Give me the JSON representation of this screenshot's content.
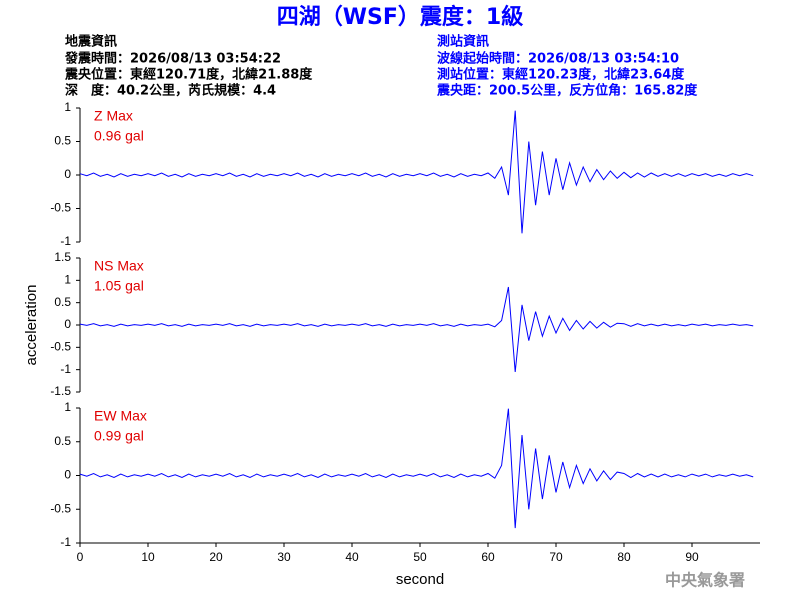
{
  "header": {
    "title": "四湖（WSF）震度：1級",
    "left": [
      "地震資訊",
      "發震時間：2026/08/13 03:54:22",
      "震央位置：東經120.71度，北緯21.88度",
      "深　度：40.2公里，芮氏規模：4.4"
    ],
    "right": [
      "測站資訊",
      "波線起始時間：2026/08/13 03:54:10",
      "測站位置：東經120.23度，北緯23.64度",
      "震央距：200.5公里，反方位角：165.82度"
    ]
  },
  "footer": "中央氣象署",
  "chart_data": [
    {
      "type": "line",
      "annotation": [
        "Z Max",
        "0.96 gal"
      ],
      "xlim": [
        0,
        100
      ],
      "ylim": [
        -1,
        1
      ],
      "yticks": [
        -1,
        -0.5,
        0,
        0.5,
        1
      ],
      "x": [
        0,
        1,
        2,
        3,
        4,
        5,
        6,
        7,
        8,
        9,
        10,
        11,
        12,
        13,
        14,
        15,
        16,
        17,
        18,
        19,
        20,
        21,
        22,
        23,
        24,
        25,
        26,
        27,
        28,
        29,
        30,
        31,
        32,
        33,
        34,
        35,
        36,
        37,
        38,
        39,
        40,
        41,
        42,
        43,
        44,
        45,
        46,
        47,
        48,
        49,
        50,
        51,
        52,
        53,
        54,
        55,
        56,
        57,
        58,
        59,
        60,
        61,
        62,
        63,
        64,
        65,
        66,
        67,
        68,
        69,
        70,
        71,
        72,
        73,
        74,
        75,
        76,
        77,
        78,
        79,
        80,
        81,
        82,
        83,
        84,
        85,
        86,
        87,
        88,
        89,
        90,
        91,
        92,
        93,
        94,
        95,
        96,
        97,
        98,
        99
      ],
      "series": [
        {
          "name": "Z",
          "color": "#0000ff",
          "values": [
            0.02,
            -0.01,
            0.03,
            -0.02,
            0.01,
            -0.03,
            0.02,
            -0.02,
            0.01,
            -0.01,
            0.02,
            -0.01,
            0.03,
            -0.02,
            0.01,
            -0.03,
            0.02,
            -0.02,
            0.01,
            -0.01,
            0.02,
            -0.01,
            0.03,
            -0.02,
            0.01,
            -0.03,
            0.02,
            -0.02,
            0.01,
            -0.01,
            0.02,
            -0.01,
            0.03,
            -0.02,
            0.01,
            -0.03,
            0.02,
            -0.02,
            0.01,
            -0.01,
            0.02,
            -0.01,
            0.03,
            -0.02,
            0.01,
            -0.03,
            0.02,
            -0.02,
            0.01,
            -0.01,
            0.02,
            -0.01,
            0.03,
            -0.02,
            0.01,
            -0.03,
            0.02,
            -0.02,
            0.01,
            -0.01,
            0.03,
            -0.05,
            0.12,
            -0.3,
            0.96,
            -0.87,
            0.5,
            -0.45,
            0.35,
            -0.3,
            0.25,
            -0.22,
            0.18,
            -0.15,
            0.12,
            -0.1,
            0.08,
            -0.07,
            0.06,
            -0.05,
            0.04,
            -0.04,
            0.03,
            -0.03,
            0.03,
            -0.02,
            0.02,
            -0.02,
            0.02,
            -0.02,
            0.02,
            -0.01,
            0.02,
            -0.02,
            0.01,
            -0.02,
            0.02,
            -0.01,
            0.02,
            -0.01
          ]
        }
      ]
    },
    {
      "type": "line",
      "annotation": [
        "NS Max",
        "1.05 gal"
      ],
      "ylabel": "acceleration",
      "xlim": [
        0,
        100
      ],
      "ylim": [
        -1.5,
        1.5
      ],
      "yticks": [
        -1.5,
        -1,
        -0.5,
        0,
        0.5,
        1,
        1.5
      ],
      "x": [
        0,
        1,
        2,
        3,
        4,
        5,
        6,
        7,
        8,
        9,
        10,
        11,
        12,
        13,
        14,
        15,
        16,
        17,
        18,
        19,
        20,
        21,
        22,
        23,
        24,
        25,
        26,
        27,
        28,
        29,
        30,
        31,
        32,
        33,
        34,
        35,
        36,
        37,
        38,
        39,
        40,
        41,
        42,
        43,
        44,
        45,
        46,
        47,
        48,
        49,
        50,
        51,
        52,
        53,
        54,
        55,
        56,
        57,
        58,
        59,
        60,
        61,
        62,
        63,
        64,
        65,
        66,
        67,
        68,
        69,
        70,
        71,
        72,
        73,
        74,
        75,
        76,
        77,
        78,
        79,
        80,
        81,
        82,
        83,
        84,
        85,
        86,
        87,
        88,
        89,
        90,
        91,
        92,
        93,
        94,
        95,
        96,
        97,
        98,
        99
      ],
      "series": [
        {
          "name": "NS",
          "color": "#0000ff",
          "values": [
            0.02,
            -0.01,
            0.03,
            -0.02,
            0.01,
            -0.03,
            0.02,
            -0.02,
            0.01,
            -0.01,
            0.02,
            -0.01,
            0.03,
            -0.02,
            0.01,
            -0.03,
            0.02,
            -0.02,
            0.01,
            -0.01,
            0.02,
            -0.01,
            0.03,
            -0.02,
            0.01,
            -0.03,
            0.02,
            -0.02,
            0.01,
            -0.01,
            0.02,
            -0.01,
            0.03,
            -0.02,
            0.01,
            -0.03,
            0.02,
            -0.02,
            0.01,
            -0.01,
            0.02,
            -0.01,
            0.03,
            -0.02,
            0.01,
            -0.03,
            0.02,
            -0.02,
            0.01,
            -0.01,
            0.02,
            -0.01,
            0.03,
            -0.02,
            0.01,
            -0.03,
            0.02,
            -0.02,
            0.01,
            -0.01,
            0.02,
            -0.04,
            0.1,
            0.85,
            -1.05,
            0.45,
            -0.35,
            0.3,
            -0.25,
            0.2,
            -0.18,
            0.15,
            -0.12,
            0.1,
            -0.09,
            0.08,
            -0.07,
            0.06,
            -0.05,
            0.04,
            0.03,
            -0.03,
            0.03,
            -0.02,
            0.02,
            -0.02,
            0.02,
            -0.02,
            0.01,
            -0.02,
            0.02,
            -0.01,
            0.02,
            -0.02,
            0.01,
            -0.01,
            0.02,
            -0.01,
            0.01,
            -0.02
          ]
        }
      ]
    },
    {
      "type": "line",
      "annotation": [
        "EW Max",
        "0.99 gal"
      ],
      "xlabel": "second",
      "xlim": [
        0,
        100
      ],
      "ylim": [
        -1,
        1
      ],
      "yticks": [
        -1,
        -0.5,
        0,
        0.5,
        1
      ],
      "xticks": [
        0,
        10,
        20,
        30,
        40,
        50,
        60,
        70,
        80,
        90
      ],
      "x": [
        0,
        1,
        2,
        3,
        4,
        5,
        6,
        7,
        8,
        9,
        10,
        11,
        12,
        13,
        14,
        15,
        16,
        17,
        18,
        19,
        20,
        21,
        22,
        23,
        24,
        25,
        26,
        27,
        28,
        29,
        30,
        31,
        32,
        33,
        34,
        35,
        36,
        37,
        38,
        39,
        40,
        41,
        42,
        43,
        44,
        45,
        46,
        47,
        48,
        49,
        50,
        51,
        52,
        53,
        54,
        55,
        56,
        57,
        58,
        59,
        60,
        61,
        62,
        63,
        64,
        65,
        66,
        67,
        68,
        69,
        70,
        71,
        72,
        73,
        74,
        75,
        76,
        77,
        78,
        79,
        80,
        81,
        82,
        83,
        84,
        85,
        86,
        87,
        88,
        89,
        90,
        91,
        92,
        93,
        94,
        95,
        96,
        97,
        98,
        99
      ],
      "series": [
        {
          "name": "EW",
          "color": "#0000ff",
          "values": [
            0.02,
            -0.01,
            0.03,
            -0.02,
            0.01,
            -0.03,
            0.02,
            -0.02,
            0.01,
            -0.01,
            0.02,
            -0.01,
            0.03,
            -0.02,
            0.01,
            -0.03,
            0.02,
            -0.02,
            0.01,
            -0.01,
            0.02,
            -0.01,
            0.03,
            -0.02,
            0.01,
            -0.03,
            0.02,
            -0.02,
            0.01,
            -0.01,
            0.02,
            -0.01,
            0.03,
            -0.02,
            0.01,
            -0.03,
            0.02,
            -0.02,
            0.01,
            -0.01,
            0.02,
            -0.01,
            0.03,
            -0.02,
            0.01,
            -0.03,
            0.02,
            -0.02,
            0.01,
            -0.01,
            0.02,
            -0.01,
            0.03,
            -0.02,
            0.01,
            -0.03,
            0.02,
            -0.02,
            0.01,
            -0.01,
            0.03,
            -0.04,
            0.15,
            0.99,
            -0.78,
            0.6,
            -0.5,
            0.4,
            -0.35,
            0.3,
            -0.25,
            0.2,
            -0.18,
            0.15,
            -0.12,
            0.1,
            -0.08,
            0.07,
            -0.06,
            0.05,
            0.03,
            -0.03,
            0.03,
            -0.02,
            0.02,
            -0.02,
            0.02,
            -0.02,
            0.01,
            -0.02,
            0.02,
            -0.01,
            0.02,
            -0.02,
            0.01,
            -0.01,
            0.02,
            -0.01,
            0.01,
            -0.02
          ]
        }
      ]
    }
  ]
}
